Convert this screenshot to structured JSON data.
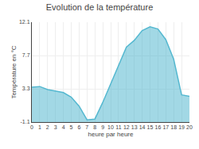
{
  "chart_data": {
    "type": "area",
    "title": "Evolution de la température",
    "x_label": "heure par heure",
    "y_label": "Température en °C",
    "x": [
      0,
      1,
      2,
      3,
      4,
      5,
      6,
      7,
      8,
      9,
      10,
      11,
      12,
      13,
      14,
      15,
      16,
      17,
      18,
      19,
      20
    ],
    "values": [
      3.5,
      3.6,
      3.2,
      3.0,
      2.8,
      2.2,
      1.0,
      -0.8,
      -0.7,
      1.5,
      4.0,
      6.5,
      8.8,
      9.7,
      11.0,
      11.5,
      11.2,
      9.8,
      7.2,
      2.5,
      2.3
    ],
    "color": "#55b8d0",
    "xlim": [
      0,
      20
    ],
    "xticks": [
      0,
      1,
      2,
      3,
      4,
      5,
      6,
      7,
      8,
      9,
      10,
      11,
      12,
      13,
      14,
      15,
      16,
      17,
      18,
      19,
      20
    ],
    "ylim": [
      -1.1,
      12.1
    ],
    "yticks": [
      -1.1,
      3.3,
      7.7,
      12.1
    ],
    "grid": true
  }
}
